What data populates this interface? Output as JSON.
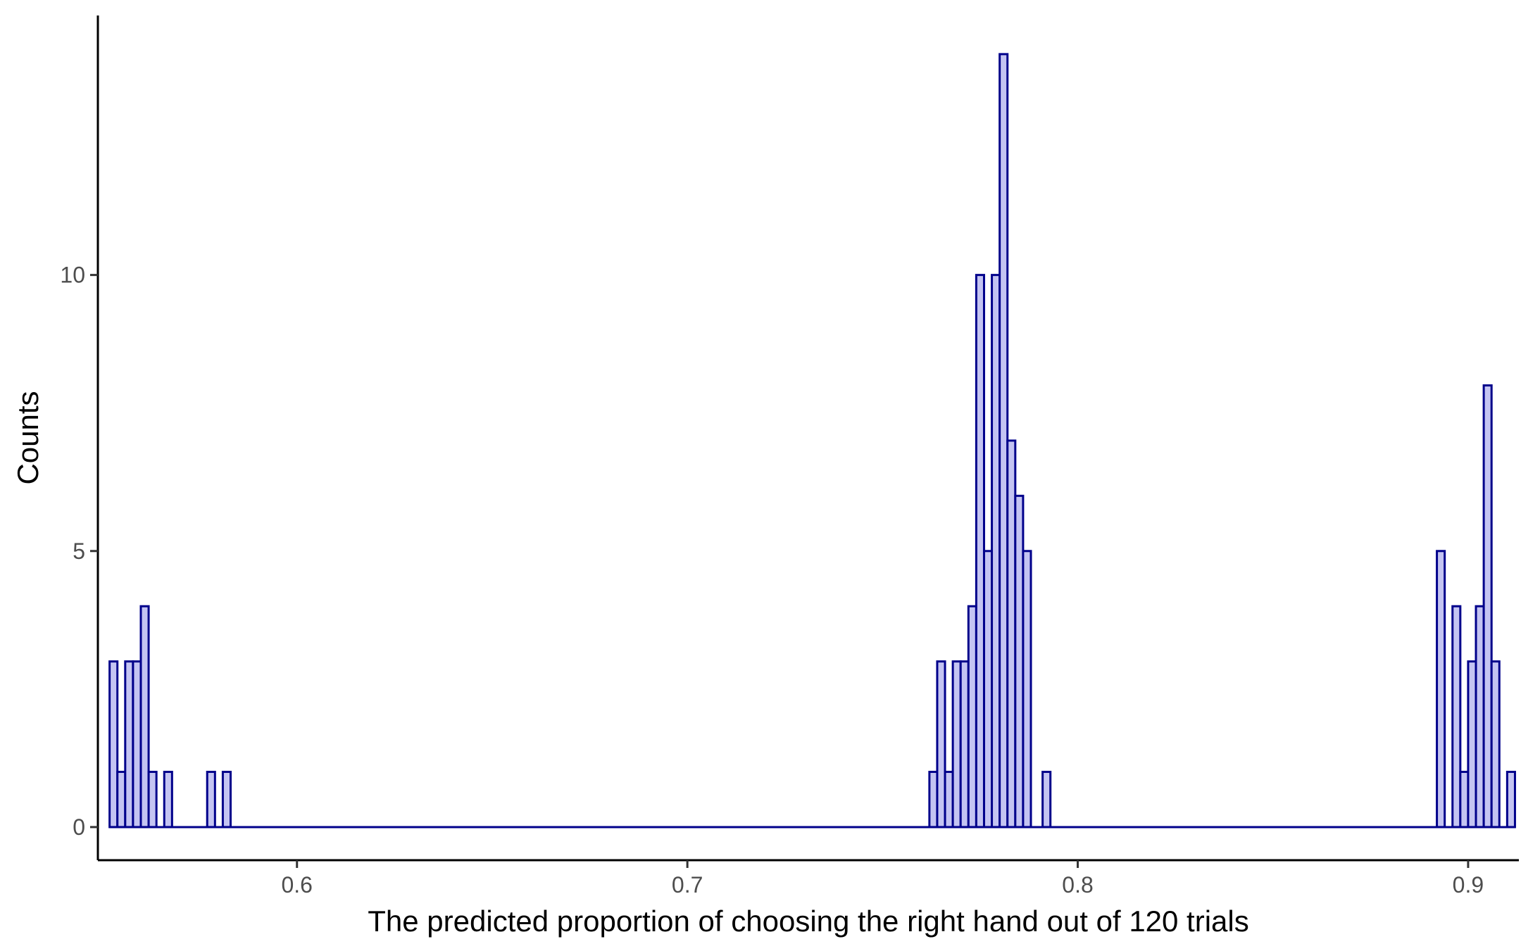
{
  "chart_data": {
    "type": "bar",
    "xlabel": "The predicted proportion of choosing the right hand out of 120 trials",
    "ylabel": "Counts",
    "xlim": [
      0.549,
      0.913
    ],
    "ylim": [
      -0.6,
      14.7
    ],
    "x_ticks": [
      {
        "value": 0.6,
        "label": "0.6"
      },
      {
        "value": 0.7,
        "label": "0.7"
      },
      {
        "value": 0.8,
        "label": "0.8"
      },
      {
        "value": 0.9,
        "label": "0.9"
      }
    ],
    "y_ticks": [
      {
        "value": 0,
        "label": "0"
      },
      {
        "value": 5,
        "label": "5"
      },
      {
        "value": 10,
        "label": "10"
      }
    ],
    "bin_width": 0.002,
    "bar_fill": "#c4c4f2",
    "bar_stroke": "#00008b",
    "bins": [
      {
        "x": 0.553,
        "count": 3
      },
      {
        "x": 0.555,
        "count": 1
      },
      {
        "x": 0.557,
        "count": 3
      },
      {
        "x": 0.559,
        "count": 3
      },
      {
        "x": 0.561,
        "count": 4
      },
      {
        "x": 0.563,
        "count": 1
      },
      {
        "x": 0.567,
        "count": 1
      },
      {
        "x": 0.578,
        "count": 1
      },
      {
        "x": 0.582,
        "count": 1
      },
      {
        "x": 0.763,
        "count": 1
      },
      {
        "x": 0.765,
        "count": 3
      },
      {
        "x": 0.767,
        "count": 1
      },
      {
        "x": 0.769,
        "count": 3
      },
      {
        "x": 0.771,
        "count": 3
      },
      {
        "x": 0.773,
        "count": 4
      },
      {
        "x": 0.775,
        "count": 10
      },
      {
        "x": 0.777,
        "count": 5
      },
      {
        "x": 0.779,
        "count": 10
      },
      {
        "x": 0.781,
        "count": 14
      },
      {
        "x": 0.783,
        "count": 7
      },
      {
        "x": 0.785,
        "count": 6
      },
      {
        "x": 0.787,
        "count": 5
      },
      {
        "x": 0.792,
        "count": 1
      },
      {
        "x": 0.893,
        "count": 5
      },
      {
        "x": 0.897,
        "count": 4
      },
      {
        "x": 0.899,
        "count": 1
      },
      {
        "x": 0.901,
        "count": 3
      },
      {
        "x": 0.903,
        "count": 4
      },
      {
        "x": 0.905,
        "count": 8
      },
      {
        "x": 0.907,
        "count": 3
      },
      {
        "x": 0.911,
        "count": 1
      }
    ],
    "baseline_range": [
      0.552,
      0.912
    ]
  }
}
